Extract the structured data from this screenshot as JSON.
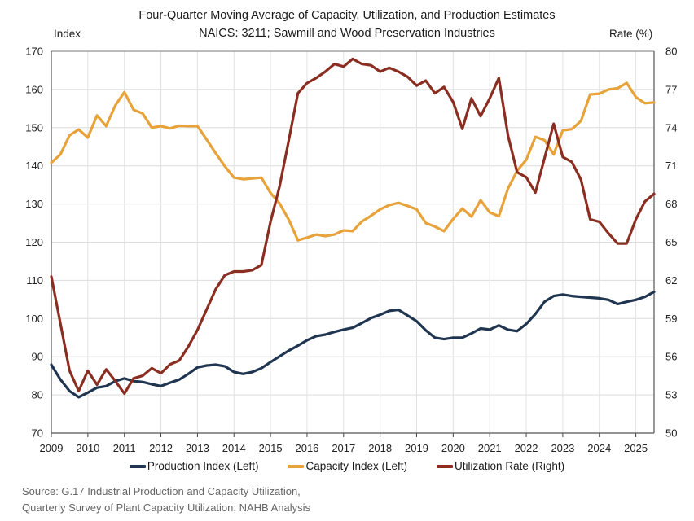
{
  "chart_data": {
    "type": "line",
    "title": "Four-Quarter Moving Average of Capacity, Utilization, and Production Estimates",
    "subtitle": "NAICS: 3211; Sawmill and Wood Preservation Industries",
    "xlabel": "",
    "ylabel_left": "Index",
    "ylabel_right": "Rate (%)",
    "ylim_left": [
      70,
      170
    ],
    "ylim_right": [
      50,
      80
    ],
    "xlim": [
      2009,
      2025.5
    ],
    "yticks_left": [
      70,
      80,
      90,
      100,
      110,
      120,
      130,
      140,
      150,
      160,
      170
    ],
    "yticks_right": [
      50,
      53,
      56,
      59,
      62,
      65,
      68,
      71,
      74,
      77,
      80
    ],
    "xticks": [
      "2009",
      "2010",
      "2011",
      "2012",
      "2013",
      "2014",
      "2015",
      "2016",
      "2017",
      "2018",
      "2019",
      "2020",
      "2021",
      "2022",
      "2023",
      "2024",
      "2025"
    ],
    "grid": true,
    "legend_position": "bottom",
    "x_start": 2009,
    "x_step": 0.25,
    "series": [
      {
        "name": "Production Index (Left)",
        "axis": "left",
        "color": "#1f3550",
        "values": [
          87.9,
          84.0,
          81.0,
          79.4,
          80.6,
          81.9,
          82.3,
          83.6,
          84.3,
          83.6,
          83.4,
          82.8,
          82.3,
          83.2,
          84.0,
          85.5,
          87.2,
          87.7,
          87.9,
          87.5,
          86.0,
          85.5,
          86.0,
          87.0,
          88.6,
          90.1,
          91.6,
          92.9,
          94.3,
          95.4,
          95.8,
          96.5,
          97.1,
          97.6,
          98.8,
          100.1,
          101.0,
          102.0,
          102.3,
          100.8,
          99.3,
          96.9,
          95.0,
          94.6,
          95.0,
          95.0,
          96.1,
          97.4,
          97.1,
          98.2,
          97.1,
          96.7,
          98.6,
          101.2,
          104.4,
          105.9,
          106.3,
          105.9,
          105.7,
          105.5,
          105.3,
          104.9,
          103.8,
          104.4,
          104.9,
          105.7,
          107.0
        ]
      },
      {
        "name": "Capacity Index (Left)",
        "axis": "left",
        "color": "#e8a23a",
        "values": [
          140.8,
          143.0,
          148.0,
          149.5,
          147.4,
          153.2,
          150.4,
          155.8,
          159.3,
          154.7,
          153.7,
          150.0,
          150.4,
          149.8,
          150.5,
          150.4,
          150.4,
          146.9,
          143.3,
          139.9,
          136.9,
          136.5,
          136.7,
          136.9,
          132.9,
          130.1,
          125.9,
          120.5,
          121.2,
          122.0,
          121.6,
          122.0,
          123.1,
          122.9,
          125.4,
          126.9,
          128.6,
          129.7,
          130.3,
          129.5,
          128.6,
          125.0,
          124.1,
          122.9,
          126.1,
          128.8,
          126.7,
          131.0,
          127.8,
          126.8,
          134.0,
          138.7,
          141.6,
          147.6,
          146.7,
          143.0,
          149.3,
          149.6,
          151.8,
          158.7,
          158.9,
          160.0,
          160.3,
          161.7,
          158.0,
          156.4,
          156.6
        ]
      },
      {
        "name": "Utilization Rate (Right)",
        "axis": "right",
        "color": "#8b2e22",
        "values": [
          62.3,
          58.6,
          54.9,
          53.3,
          54.9,
          53.8,
          55.0,
          54.1,
          53.1,
          54.3,
          54.5,
          55.1,
          54.7,
          55.4,
          55.7,
          56.8,
          58.1,
          59.7,
          61.3,
          62.4,
          62.7,
          62.7,
          62.8,
          63.2,
          66.6,
          69.4,
          73.0,
          76.7,
          77.5,
          77.9,
          78.4,
          79.0,
          78.8,
          79.4,
          79.0,
          78.9,
          78.4,
          78.7,
          78.4,
          78.0,
          77.3,
          77.7,
          76.7,
          77.2,
          76.0,
          73.9,
          76.3,
          74.9,
          76.3,
          77.9,
          73.4,
          70.5,
          70.1,
          68.9,
          71.6,
          74.3,
          71.7,
          71.3,
          69.9,
          66.8,
          66.6,
          65.7,
          64.9,
          64.9,
          66.8,
          68.2,
          68.8
        ]
      }
    ]
  },
  "source": {
    "line1": "Source: G.17 Industrial Production and Capacity Utilization,",
    "line2": "Quarterly Survey of Plant Capacity Utilization; NAHB Analysis"
  }
}
